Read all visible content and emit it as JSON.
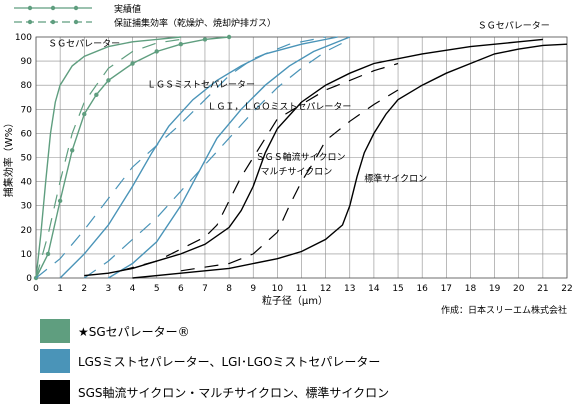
{
  "chart_data": {
    "type": "line",
    "xlabel": "粒子径（μm）",
    "ylabel": "捕集効率（W%）",
    "xlim": [
      0,
      22
    ],
    "ylim": [
      0,
      100
    ],
    "x_ticks": [
      "0",
      "1",
      "2",
      "3",
      "4",
      "5",
      "6",
      "7",
      "8",
      "9",
      "10",
      "11",
      "12",
      "13",
      "14",
      "15",
      "16",
      "17",
      "18",
      "19",
      "20",
      "21",
      "22"
    ],
    "y_ticks": [
      "0",
      "10",
      "20",
      "30",
      "40",
      "50",
      "60",
      "70",
      "80",
      "90",
      "100"
    ],
    "grid": true,
    "credit": "作成：日本スリーエム株式会社",
    "top_legend": [
      {
        "label": "実績値",
        "style": "solid"
      },
      {
        "label": "保証捕集効率（乾燥炉、焼却炉排ガス）",
        "style": "dashed"
      }
    ],
    "series": [
      {
        "group": "SG",
        "style": "solid",
        "points": [
          [
            0,
            0
          ],
          [
            0.2,
            18
          ],
          [
            0.4,
            40
          ],
          [
            0.6,
            60
          ],
          [
            0.8,
            73
          ],
          [
            1,
            80
          ],
          [
            1.5,
            88
          ],
          [
            2,
            92
          ],
          [
            3,
            96
          ],
          [
            4,
            98
          ],
          [
            5,
            99
          ],
          [
            6,
            100
          ]
        ]
      },
      {
        "group": "SG",
        "style": "solid",
        "markers": true,
        "points": [
          [
            0,
            0
          ],
          [
            0.5,
            10
          ],
          [
            1,
            32
          ],
          [
            1.5,
            53
          ],
          [
            2,
            68
          ],
          [
            2.5,
            76
          ],
          [
            3,
            82
          ],
          [
            4,
            89
          ],
          [
            5,
            94
          ],
          [
            6,
            97
          ],
          [
            7,
            99
          ],
          [
            8,
            100
          ]
        ]
      },
      {
        "group": "SG",
        "style": "dashed",
        "points": [
          [
            0,
            0
          ],
          [
            0.5,
            18
          ],
          [
            1,
            40
          ],
          [
            1.5,
            60
          ],
          [
            2,
            73
          ],
          [
            3,
            87
          ],
          [
            4,
            94
          ],
          [
            5,
            97.5
          ],
          [
            6,
            99
          ]
        ]
      },
      {
        "group": "LGS",
        "style": "solid",
        "points": [
          [
            1,
            0
          ],
          [
            2,
            10
          ],
          [
            3,
            22
          ],
          [
            4,
            38
          ],
          [
            4.8,
            52
          ],
          [
            5.5,
            63
          ],
          [
            6.5,
            74
          ],
          [
            7.5,
            82
          ],
          [
            8.5,
            88
          ],
          [
            9.5,
            93
          ],
          [
            11,
            97
          ],
          [
            12.5,
            100
          ]
        ]
      },
      {
        "group": "LGS",
        "style": "solid",
        "points": [
          [
            3,
            0
          ],
          [
            4,
            6
          ],
          [
            5,
            15
          ],
          [
            6,
            30
          ],
          [
            6.8,
            45
          ],
          [
            7.5,
            58
          ],
          [
            8.5,
            70
          ],
          [
            9.5,
            80
          ],
          [
            10.5,
            88
          ],
          [
            11.5,
            94
          ],
          [
            13,
            100
          ]
        ]
      },
      {
        "group": "LGS",
        "style": "dashed",
        "points": [
          [
            0,
            0
          ],
          [
            1,
            8
          ],
          [
            2,
            20
          ],
          [
            3,
            33
          ],
          [
            4,
            46
          ],
          [
            5,
            55
          ],
          [
            6,
            64
          ],
          [
            7,
            74
          ],
          [
            8,
            84
          ],
          [
            9,
            91
          ],
          [
            10.5,
            97
          ],
          [
            12,
            100
          ]
        ]
      },
      {
        "group": "LGS",
        "style": "dashed",
        "points": [
          [
            2,
            0
          ],
          [
            3,
            7
          ],
          [
            4,
            16
          ],
          [
            5,
            25
          ],
          [
            6,
            36
          ],
          [
            7,
            47
          ],
          [
            8,
            58
          ],
          [
            9,
            69
          ],
          [
            10,
            79
          ],
          [
            11,
            87
          ],
          [
            12,
            94
          ],
          [
            13,
            99
          ]
        ]
      },
      {
        "group": "SGS",
        "style": "solid",
        "points": [
          [
            2,
            1
          ],
          [
            3,
            2
          ],
          [
            4,
            4
          ],
          [
            5,
            7
          ],
          [
            6,
            10
          ],
          [
            7,
            14
          ],
          [
            8,
            21
          ],
          [
            8.5,
            28
          ],
          [
            9,
            38
          ],
          [
            9.5,
            52
          ],
          [
            10,
            62
          ],
          [
            11,
            73
          ],
          [
            12,
            80
          ],
          [
            13,
            85
          ],
          [
            14,
            89
          ],
          [
            16,
            93
          ],
          [
            18,
            96
          ],
          [
            20,
            98
          ],
          [
            21,
            99
          ]
        ]
      },
      {
        "group": "SGS",
        "style": "dashed",
        "points": [
          [
            3.5,
            3
          ],
          [
            5,
            7
          ],
          [
            6,
            12
          ],
          [
            7,
            17
          ],
          [
            7.5,
            22
          ],
          [
            8,
            32
          ],
          [
            8.5,
            42
          ],
          [
            9,
            50
          ],
          [
            9.5,
            58
          ],
          [
            10,
            66
          ],
          [
            11,
            72
          ],
          [
            12,
            78
          ],
          [
            13,
            82
          ],
          [
            14,
            86
          ],
          [
            15,
            89
          ]
        ]
      },
      {
        "group": "Standard",
        "style": "solid",
        "points": [
          [
            4,
            0
          ],
          [
            6,
            2
          ],
          [
            8,
            4
          ],
          [
            10,
            8
          ],
          [
            11,
            11
          ],
          [
            12,
            16
          ],
          [
            12.7,
            22
          ],
          [
            13,
            30
          ],
          [
            13.3,
            42
          ],
          [
            13.6,
            52
          ],
          [
            14,
            60
          ],
          [
            14.5,
            68
          ],
          [
            15,
            74
          ],
          [
            16,
            80
          ],
          [
            17,
            85
          ],
          [
            18,
            89
          ],
          [
            19,
            93
          ],
          [
            20,
            95
          ],
          [
            21,
            96.5
          ],
          [
            22,
            97
          ]
        ]
      },
      {
        "group": "Standard",
        "style": "dashed",
        "points": [
          [
            6,
            3
          ],
          [
            8,
            6
          ],
          [
            9,
            10
          ],
          [
            10,
            19
          ],
          [
            10.5,
            30
          ],
          [
            11,
            40
          ],
          [
            11.5,
            48
          ],
          [
            12,
            57
          ],
          [
            13,
            65
          ],
          [
            14,
            72
          ],
          [
            15,
            78
          ]
        ]
      }
    ],
    "annotations": [
      {
        "text": "ＳＧセパレーター",
        "x": 0.5,
        "y": 96
      },
      {
        "text": "ＬＧＳミストセパレーター",
        "x": 4.6,
        "y": 79
      },
      {
        "text": "ＬＧＩ，ＬＧＯミストセパレーター",
        "x": 7.1,
        "y": 70
      },
      {
        "text": "ＳＧＳ軸流サイクロン",
        "x": 9.1,
        "y": 49
      },
      {
        "text": "マルチサイクロン",
        "x": 9.3,
        "y": 43
      },
      {
        "text": "標準サイクロン",
        "x": 13.6,
        "y": 40
      },
      {
        "text": "ＳＧセパレーター",
        "x": 18.3,
        "y": 103.5
      }
    ],
    "colors": {
      "SG": "#5f9e7f",
      "LGS": "#4a94b8",
      "SGS": "#000000",
      "Standard": "#000000",
      "grid": "#8c8c8c"
    }
  },
  "legend": [
    {
      "label": "★SGセパレーター®",
      "color": "#5f9e7f"
    },
    {
      "label": "LGSミストセパレーター、LGI･LGOミストセパレーター",
      "color": "#4a94b8"
    },
    {
      "label": "SGS軸流サイクロン・マルチサイクロン、標準サイクロン",
      "color": "#000000"
    }
  ]
}
